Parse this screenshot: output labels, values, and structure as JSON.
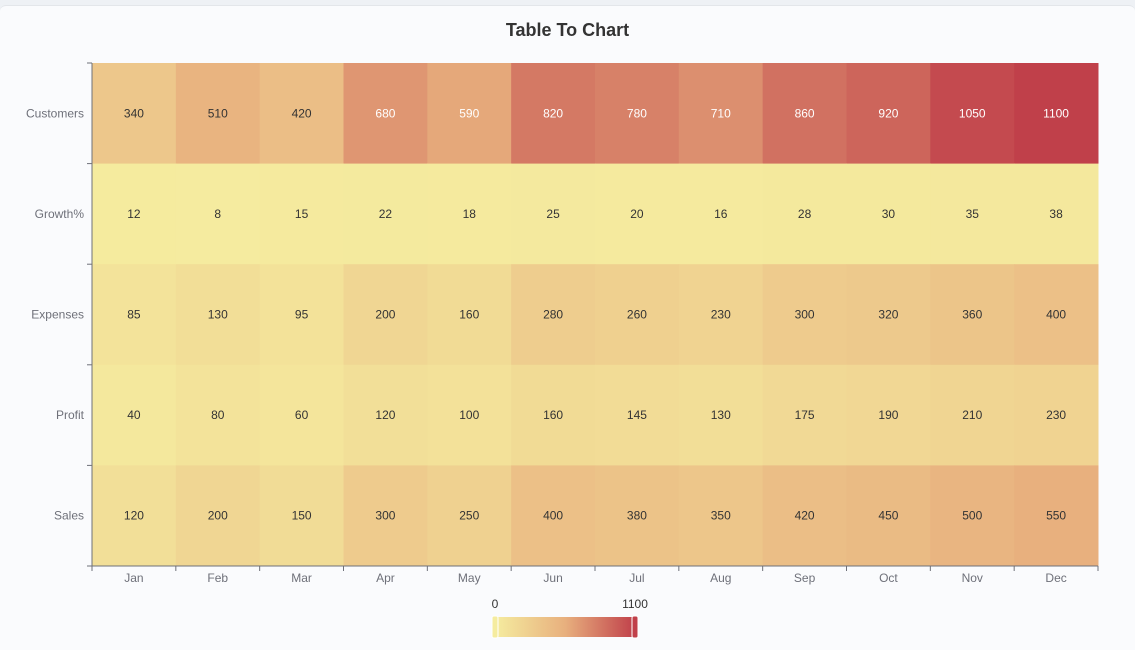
{
  "title": "Table To Chart",
  "chart_data": {
    "type": "heatmap",
    "title": "Table To Chart",
    "x_categories": [
      "Jan",
      "Feb",
      "Mar",
      "Apr",
      "May",
      "Jun",
      "Jul",
      "Aug",
      "Sep",
      "Oct",
      "Nov",
      "Dec"
    ],
    "y_categories": [
      "Customers",
      "Growth%",
      "Expenses",
      "Profit",
      "Sales"
    ],
    "rows": [
      {
        "name": "Customers",
        "values": [
          340,
          510,
          420,
          680,
          590,
          820,
          780,
          710,
          860,
          920,
          1050,
          1100
        ]
      },
      {
        "name": "Growth%",
        "values": [
          12,
          8,
          15,
          22,
          18,
          25,
          20,
          16,
          28,
          30,
          35,
          38
        ]
      },
      {
        "name": "Expenses",
        "values": [
          85,
          130,
          95,
          200,
          160,
          280,
          260,
          230,
          300,
          320,
          360,
          400
        ]
      },
      {
        "name": "Profit",
        "values": [
          40,
          80,
          60,
          120,
          100,
          160,
          145,
          130,
          175,
          190,
          210,
          230
        ]
      },
      {
        "name": "Sales",
        "values": [
          120,
          200,
          150,
          300,
          250,
          400,
          380,
          350,
          420,
          450,
          500,
          550
        ]
      }
    ],
    "visual_map": {
      "min": 0,
      "max": 1100,
      "min_label": "0",
      "max_label": "1100",
      "colors": [
        "#f5ec9f",
        "#e8b07e",
        "#c0404a"
      ]
    },
    "data_labels": true
  }
}
